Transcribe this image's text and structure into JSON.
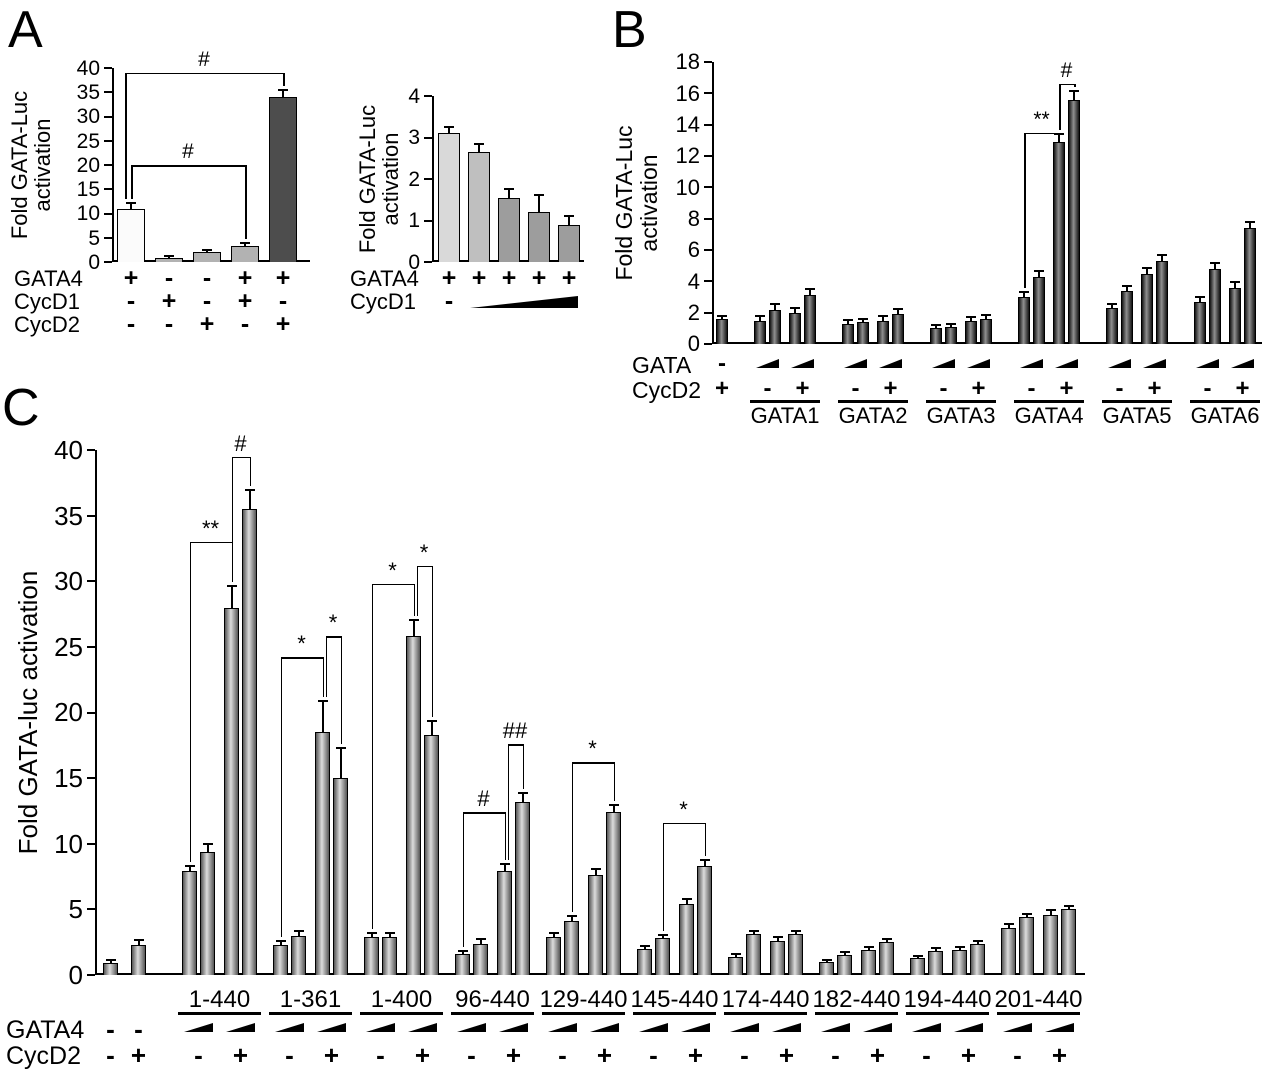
{
  "panels": {
    "a": "A",
    "b": "B",
    "c": "C"
  },
  "palette": {
    "white": [
      "#fbfbfb"
    ],
    "mid": [
      "#b2b2b2"
    ],
    "dark": [
      "#4d4d4d"
    ],
    "lt": [
      "#d9d9d9"
    ],
    "mid2": [
      "#bfbfbf"
    ],
    "dk2": [
      "#9d9d9d"
    ],
    "gradD": [
      "#141414",
      "#909090",
      "#141414"
    ],
    "gradG": [
      "#565656",
      "#dcdcdc",
      "#565656"
    ]
  },
  "chart_data": [
    {
      "id": "A_left",
      "type": "bar",
      "ylabel": "Fold GATA-Luc\nactivation",
      "ylim": [
        0,
        40
      ],
      "yticks": [
        0,
        5,
        10,
        15,
        20,
        25,
        30,
        35,
        40
      ],
      "groups": [
        {
          "label": "",
          "values": [
            11,
            0.8,
            2.1,
            3.3,
            34
          ],
          "errors": [
            1,
            0.15,
            0.25,
            0.35,
            1.2
          ],
          "fills": [
            "white",
            "mid",
            "mid",
            "mid",
            "dark"
          ]
        }
      ],
      "rows": [
        {
          "label": "GATA4",
          "cells": [
            {
              "m": "+",
              "b": 0
            },
            {
              "m": "-",
              "b": 1
            },
            {
              "m": "-",
              "b": 2
            },
            {
              "m": "+",
              "b": 3
            },
            {
              "m": "+",
              "b": 4
            }
          ]
        },
        {
          "label": "CycD1",
          "cells": [
            {
              "m": "-",
              "b": 0
            },
            {
              "m": "+",
              "b": 1
            },
            {
              "m": "-",
              "b": 2
            },
            {
              "m": "+",
              "b": 3
            },
            {
              "m": "-",
              "b": 4
            }
          ]
        },
        {
          "label": "CycD2",
          "cells": [
            {
              "m": "-",
              "b": 0
            },
            {
              "m": "-",
              "b": 1
            },
            {
              "m": "+",
              "b": 2
            },
            {
              "m": "-",
              "b": 3
            },
            {
              "m": "+",
              "b": 4
            }
          ]
        }
      ],
      "brackets": [
        {
          "from": 0,
          "to": 4,
          "y": 39,
          "label": "#",
          "xo1": -6
        },
        {
          "from": 0,
          "to": 3,
          "y": 20,
          "label": "#"
        }
      ]
    },
    {
      "id": "A_right",
      "type": "bar",
      "ylabel": "Fold GATA-Luc\nactivation",
      "ylim": [
        0,
        4
      ],
      "yticks": [
        0,
        1,
        2,
        3,
        4
      ],
      "groups": [
        {
          "label": "",
          "values": [
            3.1,
            2.65,
            1.55,
            1.2,
            0.9
          ],
          "errors": [
            0.12,
            0.18,
            0.18,
            0.38,
            0.18
          ],
          "fills": [
            "lt",
            "mid2",
            "dk2",
            "dk2",
            "dk2"
          ]
        }
      ],
      "rows": [
        {
          "label": "GATA4",
          "cells": [
            {
              "m": "+",
              "b": 0
            },
            {
              "m": "+",
              "b": 1
            },
            {
              "m": "+",
              "b": 2
            },
            {
              "m": "+",
              "b": 3
            },
            {
              "m": "+",
              "b": 4
            }
          ]
        },
        {
          "label": "CycD1",
          "cells": [
            {
              "m": "-",
              "b": 0
            },
            {
              "m": "ramp",
              "b": 1,
              "s": 4
            }
          ]
        }
      ],
      "brackets": []
    },
    {
      "id": "B",
      "type": "bar",
      "ylabel": "Fold GATA-Luc\nactivation",
      "ylim": [
        0,
        18
      ],
      "yticks": [
        0,
        2,
        4,
        6,
        8,
        10,
        12,
        14,
        16,
        18
      ],
      "groups": [
        {
          "label": "",
          "values": [
            1.6
          ],
          "errors": [
            0.1
          ],
          "fill": "gradD"
        },
        {
          "label": "GATA1",
          "values": [
            1.5,
            2.2,
            2.0,
            3.1
          ],
          "errors": [
            0.2,
            0.3,
            0.25,
            0.35
          ],
          "fill": "gradD"
        },
        {
          "label": "GATA2",
          "values": [
            1.3,
            1.4,
            1.5,
            1.9
          ],
          "errors": [
            0.15,
            0.15,
            0.2,
            0.25
          ],
          "fill": "gradD"
        },
        {
          "label": "GATA3",
          "values": [
            1.0,
            1.1,
            1.5,
            1.6
          ],
          "errors": [
            0.12,
            0.12,
            0.18,
            0.18
          ],
          "fill": "gradD"
        },
        {
          "label": "GATA4",
          "values": [
            3.0,
            4.3,
            12.9,
            15.6
          ],
          "errors": [
            0.25,
            0.3,
            0.45,
            0.5
          ],
          "fill": "gradD"
        },
        {
          "label": "GATA5",
          "values": [
            2.3,
            3.4,
            4.5,
            5.3
          ],
          "errors": [
            0.2,
            0.25,
            0.3,
            0.3
          ],
          "fill": "gradD"
        },
        {
          "label": "GATA6",
          "values": [
            2.7,
            4.8,
            3.6,
            7.4
          ],
          "errors": [
            0.25,
            0.3,
            0.3,
            0.35
          ],
          "fill": "gradD"
        }
      ],
      "rows": [
        {
          "label": "GATA",
          "cells": [
            {
              "m": "-",
              "b": 0
            },
            {
              "m": "wedge",
              "b": 1,
              "s": 2
            },
            {
              "m": "wedge",
              "b": 3,
              "s": 2
            },
            {
              "m": "wedge",
              "b": 5,
              "s": 2
            },
            {
              "m": "wedge",
              "b": 7,
              "s": 2
            },
            {
              "m": "wedge",
              "b": 9,
              "s": 2
            },
            {
              "m": "wedge",
              "b": 11,
              "s": 2
            },
            {
              "m": "wedge",
              "b": 13,
              "s": 2
            },
            {
              "m": "wedge",
              "b": 15,
              "s": 2
            },
            {
              "m": "wedge",
              "b": 17,
              "s": 2
            },
            {
              "m": "wedge",
              "b": 19,
              "s": 2
            },
            {
              "m": "wedge",
              "b": 21,
              "s": 2
            },
            {
              "m": "wedge",
              "b": 23,
              "s": 2
            }
          ]
        },
        {
          "label": "CycD2",
          "cells": [
            {
              "m": "+",
              "b": 0
            },
            {
              "m": "-",
              "b": 1,
              "s": 2
            },
            {
              "m": "+",
              "b": 3,
              "s": 2
            },
            {
              "m": "-",
              "b": 5,
              "s": 2
            },
            {
              "m": "+",
              "b": 7,
              "s": 2
            },
            {
              "m": "-",
              "b": 9,
              "s": 2
            },
            {
              "m": "+",
              "b": 11,
              "s": 2
            },
            {
              "m": "-",
              "b": 13,
              "s": 2
            },
            {
              "m": "+",
              "b": 15,
              "s": 2
            },
            {
              "m": "-",
              "b": 17,
              "s": 2
            },
            {
              "m": "+",
              "b": 19,
              "s": 2
            },
            {
              "m": "-",
              "b": 21,
              "s": 2
            },
            {
              "m": "+",
              "b": 23,
              "s": 2
            }
          ]
        }
      ],
      "brackets": [
        {
          "from": 13,
          "to": 15,
          "y": 13.5,
          "label": "**"
        },
        {
          "from": 15,
          "to": 16,
          "y": 16.6,
          "label": "#"
        }
      ]
    },
    {
      "id": "C",
      "type": "bar",
      "ylabel": "Fold GATA-luc activation",
      "ylim": [
        0,
        40
      ],
      "yticks": [
        0,
        5,
        10,
        15,
        20,
        25,
        30,
        35,
        40
      ],
      "groups": [
        {
          "label": "",
          "values": [
            0.9,
            2.3
          ],
          "errors": [
            0.15,
            0.3
          ],
          "fill": "gradG"
        },
        {
          "label": "1-440",
          "values": [
            7.9,
            9.4,
            28,
            35.5
          ],
          "errors": [
            0.3,
            0.5,
            1.6,
            1.4
          ],
          "fill": "gradG"
        },
        {
          "label": "1-361",
          "values": [
            2.3,
            3.0,
            18.5,
            15.0
          ],
          "errors": [
            0.2,
            0.3,
            2.3,
            2.2
          ],
          "fill": "gradG"
        },
        {
          "label": "1-400",
          "values": [
            2.9,
            2.9,
            25.8,
            18.3
          ],
          "errors": [
            0.2,
            0.2,
            1.2,
            1.0
          ],
          "fill": "gradG"
        },
        {
          "label": "96-440",
          "values": [
            1.6,
            2.4,
            7.9,
            13.2
          ],
          "errors": [
            0.15,
            0.25,
            0.5,
            0.6
          ],
          "fill": "gradG"
        },
        {
          "label": "129-440",
          "values": [
            2.9,
            4.1,
            7.6,
            12.4
          ],
          "errors": [
            0.2,
            0.3,
            0.4,
            0.5
          ],
          "fill": "gradG"
        },
        {
          "label": "145-440",
          "values": [
            2.0,
            2.8,
            5.4,
            8.3
          ],
          "errors": [
            0.15,
            0.2,
            0.3,
            0.4
          ],
          "fill": "gradG"
        },
        {
          "label": "174-440",
          "values": [
            1.4,
            3.1,
            2.6,
            3.1
          ],
          "errors": [
            0.15,
            0.2,
            0.2,
            0.2
          ],
          "fill": "gradG"
        },
        {
          "label": "182-440",
          "values": [
            1.0,
            1.5,
            1.9,
            2.5
          ],
          "errors": [
            0.1,
            0.15,
            0.15,
            0.2
          ],
          "fill": "gradG"
        },
        {
          "label": "194-440",
          "values": [
            1.3,
            1.8,
            1.9,
            2.4
          ],
          "errors": [
            0.1,
            0.15,
            0.15,
            0.15
          ],
          "fill": "gradG"
        },
        {
          "label": "201-440",
          "values": [
            3.6,
            4.4,
            4.6,
            5.0
          ],
          "errors": [
            0.2,
            0.2,
            0.25,
            0.2
          ],
          "fill": "gradG"
        }
      ],
      "rows": [
        {
          "label": "GATA4",
          "cells": [
            {
              "m": "-",
              "b": 0
            },
            {
              "m": "-",
              "b": 1
            },
            {
              "m": "wedge",
              "b": 2,
              "s": 2
            },
            {
              "m": "wedge",
              "b": 4,
              "s": 2
            },
            {
              "m": "wedge",
              "b": 6,
              "s": 2
            },
            {
              "m": "wedge",
              "b": 8,
              "s": 2
            },
            {
              "m": "wedge",
              "b": 10,
              "s": 2
            },
            {
              "m": "wedge",
              "b": 12,
              "s": 2
            },
            {
              "m": "wedge",
              "b": 14,
              "s": 2
            },
            {
              "m": "wedge",
              "b": 16,
              "s": 2
            },
            {
              "m": "wedge",
              "b": 18,
              "s": 2
            },
            {
              "m": "wedge",
              "b": 20,
              "s": 2
            },
            {
              "m": "wedge",
              "b": 22,
              "s": 2
            },
            {
              "m": "wedge",
              "b": 24,
              "s": 2
            },
            {
              "m": "wedge",
              "b": 26,
              "s": 2
            },
            {
              "m": "wedge",
              "b": 28,
              "s": 2
            },
            {
              "m": "wedge",
              "b": 30,
              "s": 2
            },
            {
              "m": "wedge",
              "b": 32,
              "s": 2
            },
            {
              "m": "wedge",
              "b": 34,
              "s": 2
            },
            {
              "m": "wedge",
              "b": 36,
              "s": 2
            },
            {
              "m": "wedge",
              "b": 38,
              "s": 2
            },
            {
              "m": "wedge",
              "b": 40,
              "s": 2
            }
          ]
        },
        {
          "label": "CycD2",
          "cells": [
            {
              "m": "-",
              "b": 0
            },
            {
              "m": "+",
              "b": 1
            },
            {
              "m": "-",
              "b": 2,
              "s": 2
            },
            {
              "m": "+",
              "b": 4,
              "s": 2
            },
            {
              "m": "-",
              "b": 6,
              "s": 2
            },
            {
              "m": "+",
              "b": 8,
              "s": 2
            },
            {
              "m": "-",
              "b": 10,
              "s": 2
            },
            {
              "m": "+",
              "b": 12,
              "s": 2
            },
            {
              "m": "-",
              "b": 14,
              "s": 2
            },
            {
              "m": "+",
              "b": 16,
              "s": 2
            },
            {
              "m": "-",
              "b": 18,
              "s": 2
            },
            {
              "m": "+",
              "b": 20,
              "s": 2
            },
            {
              "m": "-",
              "b": 22,
              "s": 2
            },
            {
              "m": "+",
              "b": 24,
              "s": 2
            },
            {
              "m": "-",
              "b": 26,
              "s": 2
            },
            {
              "m": "+",
              "b": 28,
              "s": 2
            },
            {
              "m": "-",
              "b": 30,
              "s": 2
            },
            {
              "m": "+",
              "b": 32,
              "s": 2
            },
            {
              "m": "-",
              "b": 34,
              "s": 2
            },
            {
              "m": "+",
              "b": 36,
              "s": 2
            },
            {
              "m": "-",
              "b": 38,
              "s": 2
            },
            {
              "m": "+",
              "b": 40,
              "s": 2
            }
          ]
        }
      ],
      "brackets": [
        {
          "from": 2,
          "to": 4,
          "y": 33,
          "label": "**"
        },
        {
          "from": 4,
          "to": 5,
          "y": 39.5,
          "label": "#"
        },
        {
          "from": 6,
          "to": 8,
          "y": 24.2,
          "label": "*"
        },
        {
          "from": 8,
          "to": 9,
          "y": 25.8,
          "label": "*",
          "xo1": 3
        },
        {
          "from": 10,
          "to": 12,
          "y": 29.8,
          "label": "*"
        },
        {
          "from": 12,
          "to": 13,
          "y": 31.2,
          "label": "*",
          "xo1": 3
        },
        {
          "from": 14,
          "to": 16,
          "y": 12.4,
          "label": "#"
        },
        {
          "from": 16,
          "to": 17,
          "y": 17.6,
          "label": "##",
          "xo1": 3
        },
        {
          "from": 19,
          "to": 21,
          "y": 16.2,
          "label": "*"
        },
        {
          "from": 23,
          "to": 25,
          "y": 11.6,
          "label": "*"
        }
      ]
    }
  ]
}
